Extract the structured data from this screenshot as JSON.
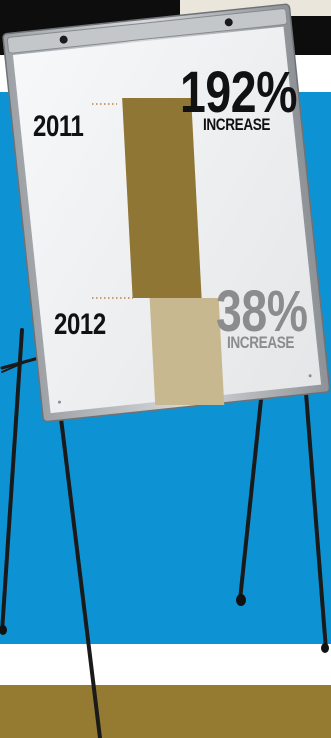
{
  "chart_data": {
    "type": "bar",
    "title": "",
    "xlabel": "",
    "ylabel": "",
    "series": [
      {
        "year": "2011",
        "pct_value": 192,
        "pct_label": "192%",
        "caption": "INCREASE",
        "color": "#8f7634"
      },
      {
        "year": "2012",
        "pct_value": 38,
        "pct_label": "38%",
        "caption": "INCREASE",
        "color": "#c8b88f"
      }
    ]
  },
  "colors": {
    "header_black": "#0d0d0d",
    "header_cream": "#ebe6dc",
    "background_blue": "#0d93d3",
    "footer_gold": "#957a32",
    "highlight_text": "#111111",
    "muted_text": "#8c8c8c"
  }
}
